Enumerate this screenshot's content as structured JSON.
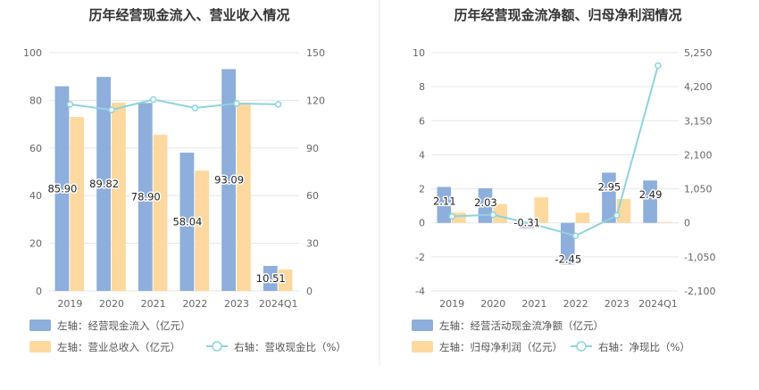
{
  "colors": {
    "bar_primary": "#8eaedc",
    "bar_secondary": "#fdd9a0",
    "line": "#8fd3dc",
    "grid": "#e6e6e6",
    "divider": "#e8e8e8"
  },
  "chart_data": [
    {
      "type": "bar",
      "title": "历年经营现金流入、营业收入情况",
      "categories": [
        "2019",
        "2020",
        "2021",
        "2022",
        "2023",
        "2024Q1"
      ],
      "y_left": {
        "range": [
          0,
          100
        ],
        "ticks": [
          "0",
          "20",
          "40",
          "60",
          "80",
          "100"
        ]
      },
      "y_right": {
        "range": [
          0,
          150
        ],
        "ticks": [
          "0",
          "30",
          "60",
          "90",
          "120",
          "150"
        ]
      },
      "grid": true,
      "legend_position": "bottom-left",
      "series": [
        {
          "name": "左轴：经营现金流入（亿元）",
          "kind": "bar",
          "axis": "left",
          "values": [
            85.9,
            89.82,
            78.9,
            58.04,
            93.09,
            10.51
          ],
          "labels": [
            "85.90",
            "89.82",
            "78.90",
            "58.04",
            "93.09",
            "10.51"
          ]
        },
        {
          "name": "左轴：营业总收入（亿元）",
          "kind": "bar",
          "axis": "left",
          "values": [
            73,
            79,
            65.5,
            50.5,
            79,
            9
          ]
        },
        {
          "name": "右轴：营收现金比（%）",
          "kind": "line",
          "axis": "right",
          "values": [
            117.5,
            114,
            120.5,
            115.2,
            118,
            117.5
          ]
        }
      ]
    },
    {
      "type": "bar",
      "title": "历年经营现金流净额、归母净利润情况",
      "categories": [
        "2019",
        "2020",
        "2021",
        "2022",
        "2023",
        "2024Q1"
      ],
      "y_left": {
        "range": [
          -4,
          10
        ],
        "ticks": [
          "-4",
          "-2",
          "0",
          "2",
          "4",
          "6",
          "8",
          "10"
        ]
      },
      "y_right": {
        "range": [
          -2100,
          5250
        ],
        "ticks": [
          "-2,100",
          "-1,050",
          "0",
          "1,050",
          "2,100",
          "3,150",
          "4,200",
          "5,250"
        ]
      },
      "grid": true,
      "legend_position": "bottom-left",
      "series": [
        {
          "name": "左轴：经营活动现金流净额（亿元）",
          "kind": "bar",
          "axis": "left",
          "values": [
            2.11,
            2.03,
            -0.31,
            -2.45,
            2.95,
            2.49
          ],
          "labels": [
            "2.11",
            "2.03",
            "-0.31",
            "-2.45",
            "2.95",
            "2.49"
          ]
        },
        {
          "name": "左轴：归母净利润（亿元）",
          "kind": "bar",
          "axis": "left",
          "values": [
            0.6,
            1.1,
            1.5,
            0.6,
            1.4,
            0.05
          ]
        },
        {
          "name": "右轴：净现比（%）",
          "kind": "line",
          "axis": "right",
          "values": [
            200,
            250,
            -50,
            -400,
            230,
            4850
          ]
        }
      ]
    }
  ]
}
